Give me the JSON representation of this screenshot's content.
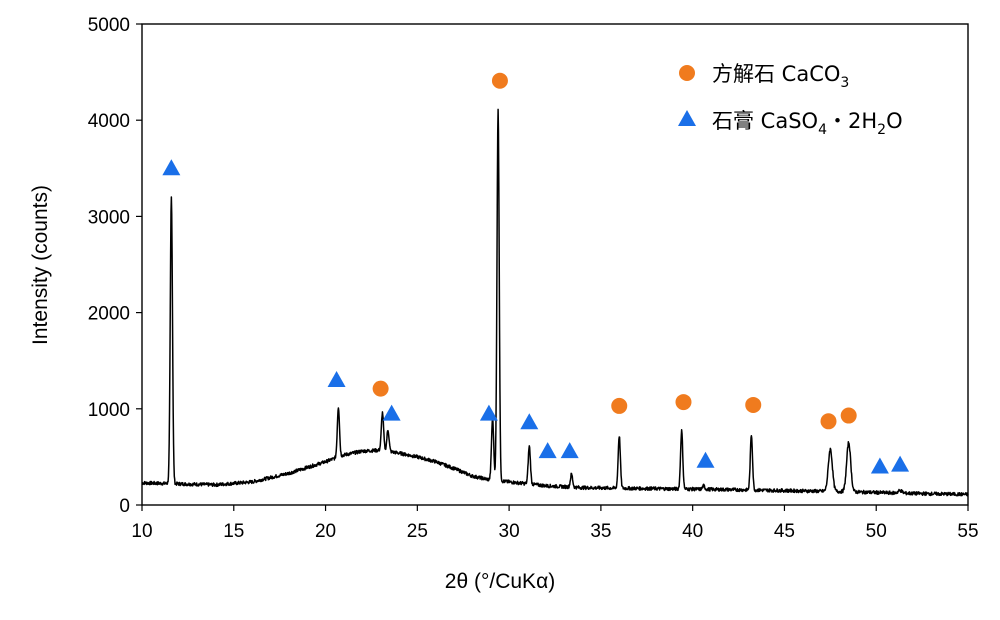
{
  "chart_data": {
    "type": "line",
    "title": "",
    "xlabel": "2θ (°/CuKα)",
    "ylabel": "Intensity (counts)",
    "xlim": [
      10,
      55
    ],
    "ylim": [
      0,
      5000
    ],
    "xticks": [
      10,
      15,
      20,
      25,
      30,
      35,
      40,
      45,
      50,
      55
    ],
    "yticks": [
      0,
      1000,
      2000,
      3000,
      4000,
      5000
    ],
    "grid": false,
    "legend_position": "top-right",
    "colors": {
      "line": "#000000",
      "calcite": "#F07B1E",
      "gypsum": "#1A6FE8"
    },
    "series": [
      {
        "type": "line",
        "baseline": [
          [
            10,
            230
          ],
          [
            12,
            220
          ],
          [
            14,
            210
          ],
          [
            16,
            240
          ],
          [
            18,
            330
          ],
          [
            20,
            450
          ],
          [
            21,
            520
          ],
          [
            22,
            560
          ],
          [
            23,
            570
          ],
          [
            24,
            540
          ],
          [
            25,
            500
          ],
          [
            26,
            450
          ],
          [
            27,
            380
          ],
          [
            28,
            300
          ],
          [
            29,
            260
          ],
          [
            30,
            240
          ],
          [
            32,
            200
          ],
          [
            34,
            180
          ],
          [
            36,
            175
          ],
          [
            38,
            170
          ],
          [
            40,
            165
          ],
          [
            42,
            160
          ],
          [
            45,
            150
          ],
          [
            48,
            140
          ],
          [
            50,
            130
          ],
          [
            52,
            120
          ],
          [
            55,
            110
          ]
        ],
        "peaks": [
          {
            "x": 11.6,
            "y": 3200
          },
          {
            "x": 20.7,
            "y": 1020
          },
          {
            "x": 23.1,
            "y": 960
          },
          {
            "x": 23.4,
            "y": 780
          },
          {
            "x": 29.1,
            "y": 900
          },
          {
            "x": 29.4,
            "y": 4100
          },
          {
            "x": 31.1,
            "y": 610
          },
          {
            "x": 33.4,
            "y": 320
          },
          {
            "x": 36.0,
            "y": 720
          },
          {
            "x": 39.4,
            "y": 770
          },
          {
            "x": 40.6,
            "y": 200
          },
          {
            "x": 43.2,
            "y": 730
          },
          {
            "x": 47.5,
            "y": 580
          },
          {
            "x": 48.5,
            "y": 650
          },
          {
            "x": 51.3,
            "y": 150
          }
        ]
      },
      {
        "name": "方解石 CaCO₃",
        "marker": "circle",
        "points": [
          [
            23.0,
            1210
          ],
          [
            29.5,
            4410
          ],
          [
            36.0,
            1030
          ],
          [
            39.5,
            1070
          ],
          [
            43.3,
            1040
          ],
          [
            47.4,
            870
          ],
          [
            48.5,
            930
          ]
        ]
      },
      {
        "name": "石膏 CaSO₄・2H₂O",
        "marker": "triangle",
        "points": [
          [
            11.6,
            3500
          ],
          [
            20.6,
            1300
          ],
          [
            23.6,
            950
          ],
          [
            28.9,
            950
          ],
          [
            31.1,
            860
          ],
          [
            32.1,
            560
          ],
          [
            33.3,
            560
          ],
          [
            40.7,
            460
          ],
          [
            50.2,
            400
          ],
          [
            51.3,
            420
          ]
        ]
      }
    ],
    "legend": {
      "calcite_main": "方解石 CaCO",
      "calcite_sub": "3",
      "gypsum_main": "石膏 CaSO",
      "gypsum_sub1": "4",
      "gypsum_mid": "・2H",
      "gypsum_sub2": "2",
      "gypsum_end": "O"
    }
  }
}
